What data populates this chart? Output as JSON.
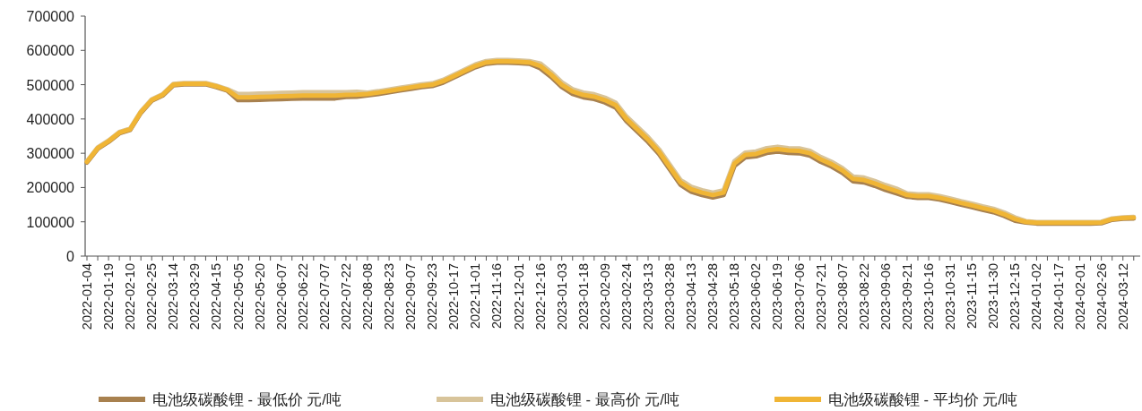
{
  "chart_data": {
    "type": "line",
    "categories": [
      "2022-01-04",
      null,
      "2022-01-19",
      null,
      "2022-02-10",
      null,
      "2022-02-25",
      null,
      "2022-03-14",
      null,
      "2022-03-29",
      null,
      "2022-04-15",
      null,
      "2022-05-05",
      null,
      "2022-05-20",
      null,
      "2022-06-07",
      null,
      "2022-06-22",
      null,
      "2022-07-07",
      null,
      "2022-07-22",
      null,
      "2022-08-08",
      null,
      "2022-08-23",
      null,
      "2022-09-07",
      null,
      "2022-09-23",
      null,
      "2022-10-17",
      null,
      "2022-11-01",
      null,
      "2022-11-16",
      null,
      "2022-12-01",
      null,
      "2022-12-16",
      null,
      "2023-01-03",
      null,
      "2023-01-18",
      null,
      "2023-02-09",
      null,
      "2023-02-24",
      null,
      "2023-03-13",
      null,
      "2023-03-28",
      null,
      "2023-04-13",
      null,
      "2023-04-28",
      null,
      "2023-05-18",
      null,
      "2023-06-02",
      null,
      "2023-06-19",
      null,
      "2023-07-06",
      null,
      "2023-07-21",
      null,
      "2023-08-07",
      null,
      "2023-08-22",
      null,
      "2023-09-06",
      null,
      "2023-09-21",
      null,
      "2023-10-16",
      null,
      "2023-10-31",
      null,
      "2023-11-15",
      null,
      "2023-11-30",
      null,
      "2023-12-15",
      null,
      "2024-01-02",
      null,
      "2024-01-17",
      null,
      "2024-02-01",
      null,
      "2024-02-26",
      null,
      "2024-03-12",
      null
    ],
    "series": [
      {
        "name": "电池级碳酸锂 - 最低价 元/吨",
        "color": "#a8814f",
        "values": [
          273000,
          313000,
          333000,
          358000,
          368000,
          418000,
          453000,
          468000,
          498000,
          501000,
          501000,
          501000,
          493000,
          483000,
          455000,
          455000,
          456000,
          457000,
          458000,
          459000,
          460000,
          460000,
          460000,
          460000,
          464000,
          465000,
          469000,
          473000,
          478000,
          483000,
          488000,
          493000,
          496000,
          506000,
          521000,
          536000,
          551000,
          561000,
          564000,
          564000,
          563000,
          561000,
          548000,
          523000,
          493000,
          473000,
          463000,
          458000,
          448000,
          433000,
          393000,
          363000,
          333000,
          298000,
          253000,
          208000,
          188000,
          178000,
          171000,
          178000,
          263000,
          288000,
          291000,
          301000,
          305000,
          301000,
          300000,
          293000,
          275000,
          261000,
          243000,
          218000,
          215000,
          205000,
          193000,
          183000,
          173000,
          170000,
          170000,
          165000,
          158000,
          150000,
          143000,
          135000,
          128000,
          117000,
          103000,
          98000,
          95000,
          95000,
          95000,
          95000,
          95000,
          95000,
          96000,
          106000,
          109000,
          110000
        ]
      },
      {
        "name": "电池级碳酸锂 - 最高价 元/吨",
        "color": "#d8c49a",
        "values": [
          277000,
          317000,
          337000,
          362000,
          372000,
          422000,
          457000,
          472000,
          502000,
          505000,
          505000,
          505000,
          497000,
          487000,
          473000,
          473000,
          474000,
          475000,
          476000,
          477000,
          478000,
          478000,
          478000,
          478000,
          478000,
          479000,
          477000,
          481000,
          486000,
          491000,
          496000,
          501000,
          504000,
          514000,
          529000,
          544000,
          559000,
          569000,
          572000,
          572000,
          571000,
          569000,
          562000,
          537000,
          507000,
          487000,
          477000,
          472000,
          462000,
          447000,
          407000,
          377000,
          347000,
          312000,
          267000,
          222000,
          202000,
          192000,
          185000,
          192000,
          277000,
          302000,
          305000,
          315000,
          319000,
          315000,
          314000,
          307000,
          289000,
          275000,
          257000,
          232000,
          229000,
          219000,
          207000,
          197000,
          183000,
          180000,
          180000,
          175000,
          168000,
          160000,
          153000,
          145000,
          138000,
          127000,
          113000,
          102000,
          99000,
          99000,
          99000,
          99000,
          99000,
          99000,
          100000,
          110000,
          113000,
          114000
        ]
      },
      {
        "name": "电池级碳酸锂 - 平均价 元/吨",
        "color": "#f0b535",
        "values": [
          275000,
          315000,
          335000,
          360000,
          370000,
          420000,
          455000,
          470000,
          500000,
          503000,
          503000,
          503000,
          495000,
          485000,
          463000,
          463000,
          464000,
          465000,
          466000,
          467000,
          468000,
          468000,
          468000,
          468000,
          470000,
          471000,
          473000,
          477000,
          482000,
          487000,
          492000,
          497000,
          500000,
          510000,
          525000,
          540000,
          555000,
          565000,
          568000,
          568000,
          567000,
          565000,
          555000,
          530000,
          500000,
          480000,
          470000,
          465000,
          455000,
          440000,
          400000,
          370000,
          340000,
          305000,
          260000,
          215000,
          195000,
          185000,
          178000,
          185000,
          270000,
          295000,
          298000,
          308000,
          312000,
          308000,
          307000,
          300000,
          282000,
          268000,
          250000,
          225000,
          222000,
          212000,
          200000,
          190000,
          178000,
          175000,
          175000,
          170000,
          163000,
          155000,
          148000,
          140000,
          133000,
          122000,
          108000,
          100000,
          97000,
          97000,
          97000,
          97000,
          97000,
          97000,
          98000,
          108000,
          111000,
          112000
        ]
      }
    ],
    "ylim": [
      0,
      700000
    ],
    "yticks": [
      0,
      100000,
      200000,
      300000,
      400000,
      500000,
      600000,
      700000
    ],
    "grid": false,
    "legend": "bottom"
  }
}
